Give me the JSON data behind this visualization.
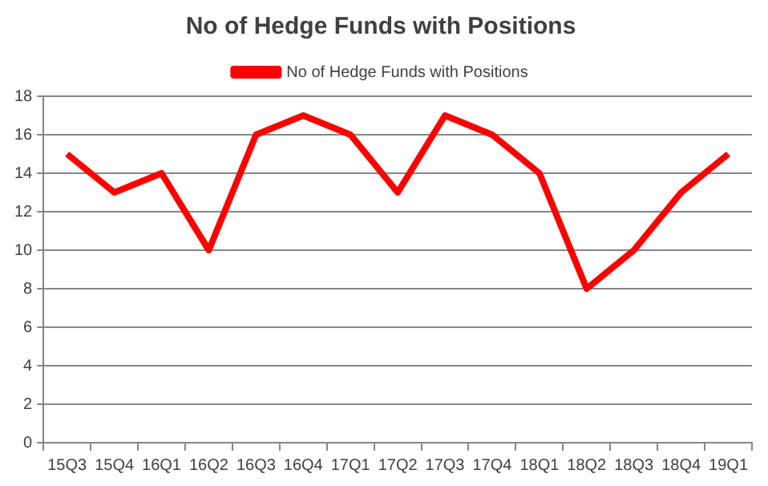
{
  "chart_data": {
    "type": "line",
    "title": "No of Hedge Funds with Positions",
    "categories": [
      "15Q3",
      "15Q4",
      "16Q1",
      "16Q2",
      "16Q3",
      "16Q4",
      "17Q1",
      "17Q2",
      "17Q3",
      "17Q4",
      "18Q1",
      "18Q2",
      "18Q3",
      "18Q4",
      "19Q1"
    ],
    "series": [
      {
        "name": "No of Hedge Funds with Positions",
        "color": "#ff0000",
        "values": [
          15,
          13,
          14,
          10,
          16,
          17,
          16,
          13,
          17,
          16,
          14,
          8,
          10,
          13,
          15
        ]
      }
    ],
    "ylim": [
      0,
      18
    ],
    "yticks": [
      0,
      2,
      4,
      6,
      8,
      10,
      12,
      14,
      16,
      18
    ],
    "grid": "y",
    "legend": "top",
    "marker": "none",
    "line_style": "solid"
  }
}
